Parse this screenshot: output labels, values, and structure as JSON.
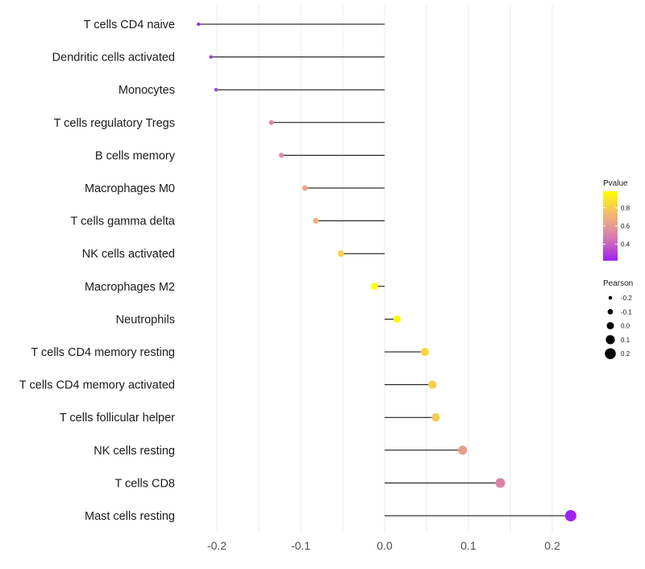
{
  "chart_data": {
    "type": "lollipop",
    "categories": [
      "T cells CD4 naive",
      "Dendritic cells activated",
      "Monocytes",
      "T cells regulatory  Tregs ",
      "B cells memory",
      "Macrophages M0",
      "T cells gamma delta",
      "NK cells activated",
      "Macrophages M2",
      "Neutrophils",
      "T cells CD4 memory resting",
      "T cells CD4 memory activated",
      "T cells follicular helper",
      "NK cells resting",
      "T cells CD8",
      "Mast cells resting"
    ],
    "series": [
      {
        "name": "Pearson",
        "values": [
          -0.222,
          -0.207,
          -0.201,
          -0.135,
          -0.123,
          -0.095,
          -0.082,
          -0.052,
          -0.012,
          0.015,
          0.048,
          0.057,
          0.061,
          0.093,
          0.138,
          0.222
        ]
      },
      {
        "name": "Pvalue",
        "values": [
          0.22,
          0.26,
          0.28,
          0.52,
          0.55,
          0.65,
          0.7,
          0.82,
          0.98,
          0.96,
          0.84,
          0.81,
          0.79,
          0.62,
          0.5,
          0.22
        ]
      }
    ],
    "xlim": [
      -0.24,
      0.24
    ],
    "x_ticks": [
      {
        "value": -0.2,
        "label": "-0.2"
      },
      {
        "value": -0.1,
        "label": "-0.1"
      },
      {
        "value": 0.0,
        "label": "0.0"
      },
      {
        "value": 0.1,
        "label": "0.1"
      },
      {
        "value": 0.2,
        "label": "0.2"
      }
    ],
    "xlabel": "",
    "ylabel": "",
    "grid": true,
    "color_scale": {
      "title": "Pvalue",
      "domain": [
        0.22,
        0.98
      ],
      "colors": [
        "#a020f0",
        "#d87ab0",
        "#f2b870",
        "#ffff00"
      ],
      "ticks": [
        {
          "value": 0.4,
          "label": "0.4"
        },
        {
          "value": 0.6,
          "label": "0.6"
        },
        {
          "value": 0.8,
          "label": "0.8"
        }
      ]
    },
    "size_legend": {
      "title": "Pearson",
      "entries": [
        {
          "value": -0.2,
          "label": "-0.2"
        },
        {
          "value": -0.1,
          "label": "-0.1"
        },
        {
          "value": 0.0,
          "label": "0.0"
        },
        {
          "value": 0.1,
          "label": "0.1"
        },
        {
          "value": 0.2,
          "label": "0.2"
        }
      ]
    }
  }
}
